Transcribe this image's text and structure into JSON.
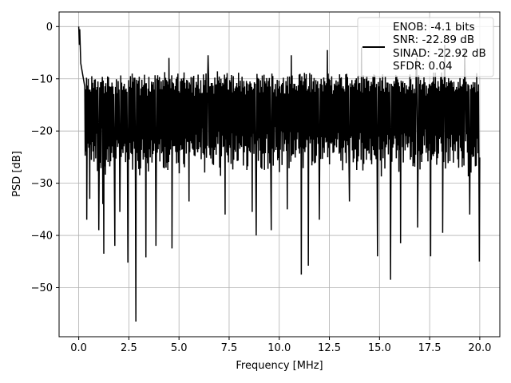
{
  "chart_data": {
    "type": "line",
    "title": "",
    "xlabel": "Frequency [MHz]",
    "ylabel": "PSD [dB]",
    "xlim": [
      -0.98,
      21.0
    ],
    "ylim": [
      -59.4,
      2.8
    ],
    "x_ticks": [
      0.0,
      2.5,
      5.0,
      7.5,
      10.0,
      12.5,
      15.0,
      17.5,
      20.0
    ],
    "x_tick_labels": [
      "0.0",
      "2.5",
      "5.0",
      "7.5",
      "10.0",
      "12.5",
      "15.0",
      "17.5",
      "20.0"
    ],
    "y_ticks": [
      0,
      -10,
      -20,
      -30,
      -40,
      -50
    ],
    "y_tick_labels": [
      "0",
      "−10",
      "−20",
      "−30",
      "−40",
      "−50"
    ],
    "grid": true,
    "legend_position": "top-right",
    "series": [
      {
        "name": "ENOB: -4.1 bits",
        "color": "#000000",
        "stats": [
          "SNR: -22.89 dB",
          "SINAD: -22.92 dB",
          "SFDR: 0.04"
        ],
        "x_start": 0.0,
        "x_end": 20.0,
        "n_points": 900,
        "band_top": -10.5,
        "band_bottom": -25.0,
        "peak_points": [
          {
            "x": 0.0,
            "y": 0.0
          },
          {
            "x": 0.03,
            "y": -3.5
          },
          {
            "x": 0.1,
            "y": -7.0
          },
          {
            "x": 0.3,
            "y": -11.5
          }
        ],
        "dips": [
          {
            "x": 0.4,
            "y": -37.0
          },
          {
            "x": 0.55,
            "y": -33.0
          },
          {
            "x": 1.0,
            "y": -39.0
          },
          {
            "x": 1.2,
            "y": -34.0
          },
          {
            "x": 1.25,
            "y": -43.5
          },
          {
            "x": 1.8,
            "y": -42.0
          },
          {
            "x": 2.05,
            "y": -35.5
          },
          {
            "x": 2.45,
            "y": -45.2
          },
          {
            "x": 2.85,
            "y": -56.5
          },
          {
            "x": 3.35,
            "y": -44.2
          },
          {
            "x": 3.85,
            "y": -42.0
          },
          {
            "x": 4.65,
            "y": -42.5
          },
          {
            "x": 5.5,
            "y": -33.5
          },
          {
            "x": 6.45,
            "y": -40.8
          },
          {
            "x": 7.3,
            "y": -36.0
          },
          {
            "x": 8.65,
            "y": -35.5
          },
          {
            "x": 8.85,
            "y": -40.0
          },
          {
            "x": 9.6,
            "y": -39.0
          },
          {
            "x": 10.4,
            "y": -35.0
          },
          {
            "x": 11.1,
            "y": -47.5
          },
          {
            "x": 11.45,
            "y": -45.8
          },
          {
            "x": 12.0,
            "y": -37.0
          },
          {
            "x": 12.4,
            "y": -40.5
          },
          {
            "x": 13.5,
            "y": -33.5
          },
          {
            "x": 14.9,
            "y": -44.0
          },
          {
            "x": 15.55,
            "y": -48.5
          },
          {
            "x": 16.05,
            "y": -41.5
          },
          {
            "x": 16.9,
            "y": -38.5
          },
          {
            "x": 17.55,
            "y": -44.0
          },
          {
            "x": 18.15,
            "y": -39.5
          },
          {
            "x": 19.5,
            "y": -36.0
          },
          {
            "x": 19.98,
            "y": -45.0
          }
        ],
        "spikes": [
          {
            "x": 0.05,
            "y": -0.5
          },
          {
            "x": 4.5,
            "y": -6.0
          },
          {
            "x": 6.45,
            "y": -5.5
          },
          {
            "x": 12.4,
            "y": -4.5
          },
          {
            "x": 14.1,
            "y": -4.0
          },
          {
            "x": 16.85,
            "y": -6.0
          },
          {
            "x": 18.25,
            "y": -3.5
          },
          {
            "x": 19.25,
            "y": -4.5
          },
          {
            "x": 10.6,
            "y": -5.5
          }
        ]
      }
    ]
  }
}
